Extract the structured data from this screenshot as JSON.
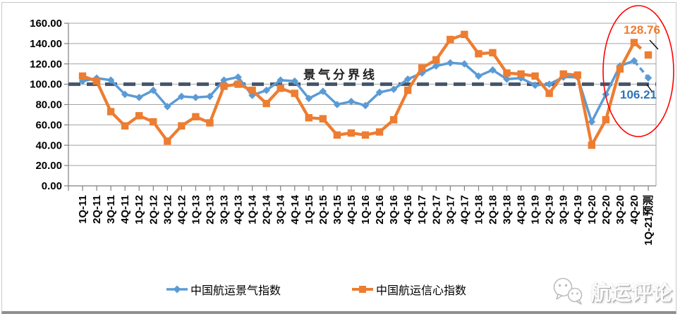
{
  "chart_data": {
    "type": "line",
    "title": "",
    "categories": [
      "1Q-11",
      "2Q-11",
      "3Q-11",
      "4Q-11",
      "1Q-12",
      "2Q-12",
      "3Q-12",
      "4Q-12",
      "1Q-13",
      "2Q-13",
      "3Q-13",
      "4Q-13",
      "1Q-14",
      "2Q-14",
      "3Q-14",
      "4Q-14",
      "1Q-15",
      "2Q-15",
      "3Q-15",
      "4Q-15",
      "1Q-16",
      "2Q-16",
      "3Q-16",
      "4Q-16",
      "1Q-17",
      "2Q-17",
      "3Q-17",
      "4Q-17",
      "1Q-18",
      "2Q-18",
      "3Q-18",
      "4Q-18",
      "1Q-19",
      "2Q-19",
      "3Q-19",
      "4Q-19",
      "1Q-20",
      "2Q-20",
      "3Q-20",
      "4Q-20",
      "1Q-21预测"
    ],
    "series": [
      {
        "name": "中国航运景气指数",
        "color": "#5B9BD5",
        "marker": "diamond",
        "values": [
          103,
          106,
          104,
          90,
          87,
          94,
          78,
          88,
          87,
          88,
          104,
          107,
          89,
          94,
          104,
          103,
          86,
          93,
          80,
          83,
          79,
          92,
          95,
          105,
          111,
          118,
          121,
          120,
          108,
          114,
          105,
          106,
          99,
          100,
          107,
          107,
          63,
          90,
          118,
          123,
          106.21
        ]
      },
      {
        "name": "中国航运信心指数",
        "color": "#ED7D31",
        "marker": "square",
        "values": [
          108,
          103,
          73,
          59,
          69,
          63,
          44,
          59,
          68,
          62,
          98,
          100,
          94,
          81,
          96,
          91,
          67,
          66,
          50,
          52,
          50,
          53,
          65,
          94,
          116,
          124,
          144,
          149,
          130,
          131,
          111,
          110,
          108,
          91,
          110,
          109,
          40,
          65,
          115,
          141,
          128.76
        ]
      }
    ],
    "ylim": [
      0,
      160
    ],
    "ytick_labels": [
      "0.00",
      "20.00",
      "40.00",
      "60.00",
      "80.00",
      "100.00",
      "120.00",
      "140.00",
      "160.00"
    ],
    "grid": true,
    "legend_position": "bottom",
    "boundary_line": {
      "value": 100,
      "label": "景气分界线",
      "color": "#44546A"
    },
    "forecast_last_segment": true,
    "annotation_ellipse_color": "#FF0000"
  },
  "annotations": {
    "confidence_forecast_label": "128.76",
    "prosperity_forecast_label": "106.21"
  },
  "watermark": {
    "text": "航运评论",
    "icon": "wechat-icon"
  },
  "colors": {
    "prosperity_blue": "#5B9BD5",
    "confidence_orange": "#ED7D31",
    "boundary_dash": "#44546A",
    "gridline": "#A3A3A3",
    "axis": "#808080",
    "annotation_blue": "#2E75B6",
    "ellipse_red": "#FF0000"
  }
}
